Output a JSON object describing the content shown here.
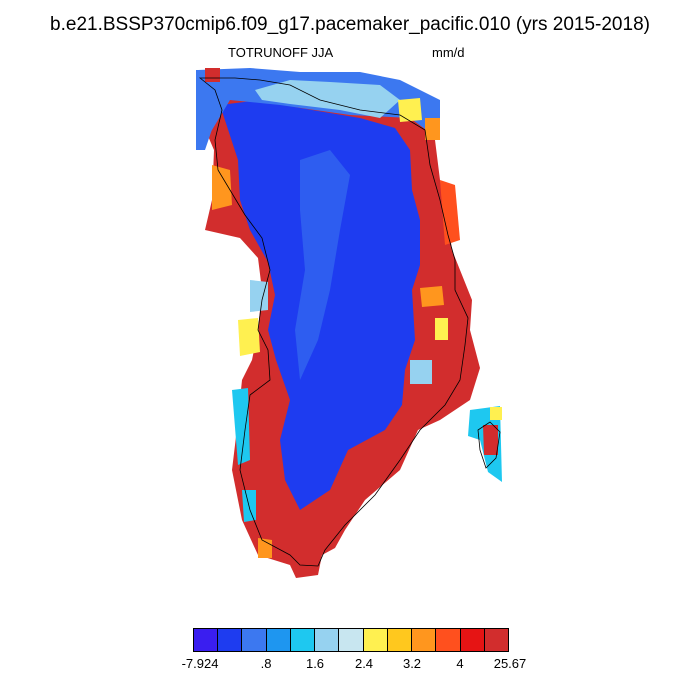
{
  "header": {
    "title": "b.e21.BSSP370cmip6.f09_g17.pacemaker_pacific.010 (yrs 2015-2018)",
    "variable": "TOTRUNOFF JJA",
    "units": "mm/d"
  },
  "colorbar": {
    "colors": [
      "#3a1ef0",
      "#1e3cf0",
      "#3c78f0",
      "#1e96f0",
      "#1ec8f0",
      "#96d2f0",
      "#c8e6f0",
      "#fff050",
      "#ffc81e",
      "#ff961e",
      "#ff501e",
      "#e61414",
      "#d22d2d"
    ],
    "labels": [
      "-7.924",
      ".8",
      "1.6",
      "2.4",
      "3.2",
      "4",
      "25.67"
    ]
  },
  "map": {
    "region": "Greenland",
    "colors": {
      "interior": "#1e3cf0",
      "interior_alt": "#3c78f0",
      "coast_high": "#d22d2d",
      "coast_mid": "#ff501e",
      "orange": "#ff961e",
      "yellow": "#fff050",
      "lightblue": "#96d2f0",
      "cyan": "#1ec8f0"
    }
  }
}
